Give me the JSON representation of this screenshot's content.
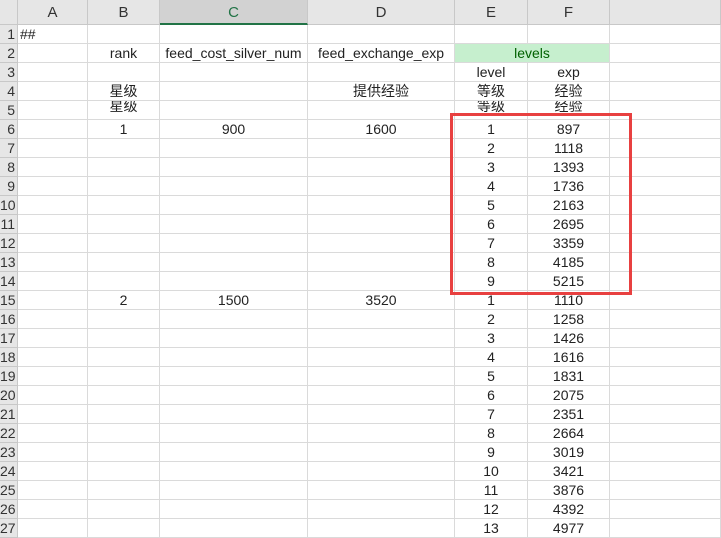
{
  "columns": [
    "A",
    "B",
    "C",
    "D",
    "E",
    "F"
  ],
  "selected_column": "C",
  "accent": "#217346",
  "highlight_fill": "#c6efce",
  "highlight_text": "#006100",
  "annotation_color": "#e84040",
  "rows": [
    {
      "n": "1",
      "A": "##"
    },
    {
      "n": "2",
      "B": "rank",
      "C": "feed_cost_silver_num",
      "D": "feed_exchange_exp",
      "E": "levels"
    },
    {
      "n": "3",
      "E": "level",
      "F": "exp"
    },
    {
      "n": "4",
      "B": "星级",
      "D": "提供经验",
      "E": "等级",
      "F": "经验"
    },
    {
      "n": "5",
      "B": "星级",
      "E": "等级",
      "F": "经验"
    },
    {
      "n": "6",
      "B": "1",
      "C": "900",
      "D": "1600",
      "E": "1",
      "F": "897"
    },
    {
      "n": "7",
      "E": "2",
      "F": "1118"
    },
    {
      "n": "8",
      "E": "3",
      "F": "1393"
    },
    {
      "n": "9",
      "E": "4",
      "F": "1736"
    },
    {
      "n": "10",
      "E": "5",
      "F": "2163"
    },
    {
      "n": "11",
      "E": "6",
      "F": "2695"
    },
    {
      "n": "12",
      "E": "7",
      "F": "3359"
    },
    {
      "n": "13",
      "E": "8",
      "F": "4185"
    },
    {
      "n": "14",
      "E": "9",
      "F": "5215"
    },
    {
      "n": "15",
      "B": "2",
      "C": "1500",
      "D": "3520",
      "E": "1",
      "F": "1110"
    },
    {
      "n": "16",
      "E": "2",
      "F": "1258"
    },
    {
      "n": "17",
      "E": "3",
      "F": "1426"
    },
    {
      "n": "18",
      "E": "4",
      "F": "1616"
    },
    {
      "n": "19",
      "E": "5",
      "F": "1831"
    },
    {
      "n": "20",
      "E": "6",
      "F": "2075"
    },
    {
      "n": "21",
      "E": "7",
      "F": "2351"
    },
    {
      "n": "22",
      "E": "8",
      "F": "2664"
    },
    {
      "n": "23",
      "E": "9",
      "F": "3019"
    },
    {
      "n": "24",
      "E": "10",
      "F": "3421"
    },
    {
      "n": "25",
      "E": "11",
      "F": "3876"
    },
    {
      "n": "26",
      "E": "12",
      "F": "4392"
    },
    {
      "n": "27",
      "E": "13",
      "F": "4977"
    }
  ]
}
